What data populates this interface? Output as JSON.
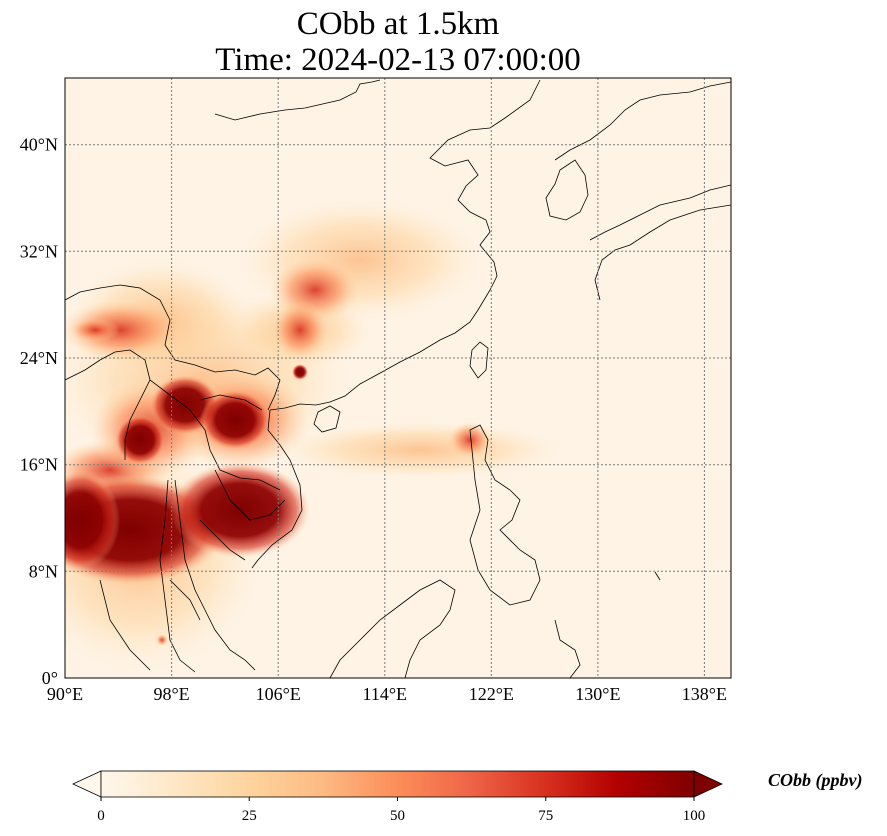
{
  "title": {
    "line1": "CObb at 1.5km",
    "line2": "Time: 2024-02-13 07:00:00"
  },
  "map": {
    "extent": {
      "lon": [
        90,
        140
      ],
      "lat": [
        0,
        45
      ]
    },
    "lon_ticks": [
      90,
      98,
      106,
      114,
      122,
      130,
      138
    ],
    "lat_ticks": [
      0,
      8,
      16,
      24,
      32,
      40
    ],
    "lon_labels": [
      "90°E",
      "98°E",
      "106°E",
      "114°E",
      "122°E",
      "130°E",
      "138°E"
    ],
    "lat_labels": [
      "0°",
      "8°N",
      "16°N",
      "24°N",
      "32°N",
      "40°N"
    ],
    "gridlines": true,
    "colormap": "OrRd",
    "colors": {
      "low": "#fff7ec",
      "mid": "#fdbb84",
      "high": "#7f0000",
      "coast": "#000000",
      "grid": "#7a7a7a"
    }
  },
  "colorbar": {
    "ticks": [
      0,
      25,
      50,
      75,
      100
    ],
    "tick_labels": [
      "0",
      "25",
      "50",
      "75",
      "100"
    ],
    "label": "CObb (ppbv)",
    "extend": "both"
  }
}
